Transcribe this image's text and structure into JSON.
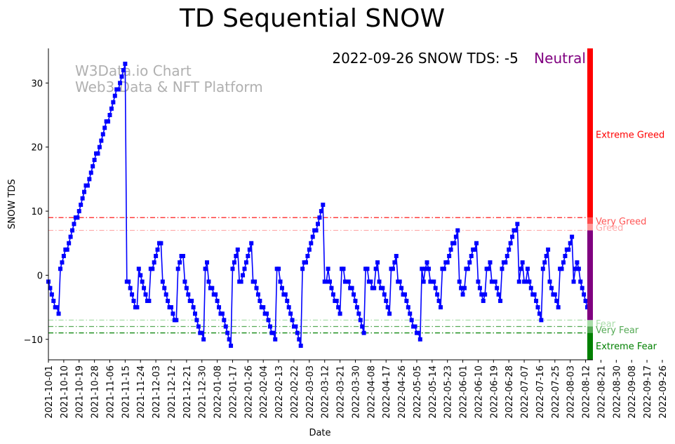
{
  "chart_data": {
    "type": "line",
    "title": "TD Sequential SNOW",
    "xlabel": "Date",
    "ylabel": "SNOW TDS",
    "ylim": [
      -13.2,
      35.4
    ],
    "yticks": [
      30,
      20,
      10,
      0,
      -10
    ],
    "ytick_labels": [
      "30",
      "20",
      "10",
      "0",
      "−10"
    ],
    "x_tick_labels": [
      "2021-10-01",
      "2021-10-10",
      "2021-10-19",
      "2021-10-28",
      "2021-11-06",
      "2021-11-15",
      "2021-11-24",
      "2021-12-03",
      "2021-12-12",
      "2021-12-21",
      "2021-12-30",
      "2022-01-08",
      "2022-01-17",
      "2022-01-26",
      "2022-02-04",
      "2022-02-13",
      "2022-02-22",
      "2022-03-03",
      "2022-03-12",
      "2022-03-21",
      "2022-03-30",
      "2022-04-08",
      "2022-04-17",
      "2022-04-26",
      "2022-05-05",
      "2022-05-14",
      "2022-05-23",
      "2022-06-01",
      "2022-06-10",
      "2022-06-19",
      "2022-06-28",
      "2022-07-07",
      "2022-07-16",
      "2022-07-25",
      "2022-08-03",
      "2022-08-12",
      "2022-08-21",
      "2022-08-30",
      "2022-09-08",
      "2022-09-17",
      "2022-09-26"
    ],
    "start_date": "2021-10-01",
    "series": [
      {
        "name": "SNOW TDS",
        "color": "#0000ff",
        "values": [
          -1,
          -2,
          -3,
          -4,
          -5,
          -5,
          -6,
          1,
          2,
          3,
          4,
          4,
          5,
          6,
          7,
          8,
          9,
          9,
          10,
          11,
          12,
          13,
          14,
          14,
          15,
          16,
          17,
          18,
          19,
          19,
          20,
          21,
          22,
          23,
          24,
          24,
          25,
          26,
          27,
          28,
          29,
          29,
          30,
          31,
          32,
          33,
          -1,
          -1,
          -2,
          -3,
          -4,
          -5,
          -5,
          1,
          0,
          -1,
          -2,
          -3,
          -4,
          -4,
          1,
          1,
          2,
          3,
          4,
          5,
          5,
          -1,
          -2,
          -3,
          -4,
          -5,
          -5,
          -6,
          -7,
          -7,
          1,
          2,
          3,
          3,
          -1,
          -2,
          -3,
          -4,
          -4,
          -5,
          -6,
          -7,
          -8,
          -9,
          -9,
          -10,
          1,
          2,
          -1,
          -2,
          -2,
          -3,
          -3,
          -4,
          -5,
          -6,
          -6,
          -7,
          -8,
          -9,
          -10,
          -11,
          1,
          2,
          3,
          4,
          -1,
          -1,
          0,
          1,
          2,
          3,
          4,
          5,
          -1,
          -1,
          -2,
          -3,
          -4,
          -5,
          -5,
          -6,
          -6,
          -7,
          -8,
          -9,
          -9,
          -10,
          1,
          1,
          -1,
          -2,
          -3,
          -3,
          -4,
          -5,
          -6,
          -7,
          -8,
          -8,
          -9,
          -10,
          -11,
          1,
          2,
          2,
          3,
          4,
          5,
          6,
          7,
          7,
          8,
          9,
          10,
          11,
          -1,
          -1,
          1,
          -1,
          -2,
          -3,
          -4,
          -4,
          -5,
          -6,
          1,
          1,
          -1,
          -1,
          -1,
          -2,
          -2,
          -3,
          -4,
          -5,
          -6,
          -7,
          -8,
          -9,
          1,
          1,
          -1,
          -1,
          -2,
          -2,
          1,
          2,
          -1,
          -2,
          -2,
          -3,
          -4,
          -5,
          -6,
          1,
          1,
          2,
          3,
          -1,
          -1,
          -2,
          -3,
          -3,
          -4,
          -5,
          -6,
          -7,
          -8,
          -8,
          -9,
          -9,
          -10,
          1,
          -1,
          1,
          2,
          1,
          -1,
          -1,
          -1,
          -2,
          -3,
          -4,
          -5,
          1,
          1,
          2,
          2,
          3,
          4,
          5,
          5,
          6,
          7,
          -1,
          -2,
          -3,
          -2,
          1,
          1,
          2,
          3,
          4,
          4,
          5,
          -1,
          -2,
          -3,
          -4,
          -3,
          1,
          1,
          2,
          -1,
          -1,
          -1,
          -2,
          -3,
          -4,
          1,
          2,
          2,
          3,
          4,
          5,
          6,
          7,
          7,
          8,
          -1,
          1,
          2,
          -1,
          -1,
          1,
          -1,
          -2,
          -3,
          -3,
          -4,
          -5,
          -6,
          -7,
          1,
          2,
          3,
          4,
          -1,
          -2,
          -3,
          -3,
          -4,
          -5,
          1,
          1,
          2,
          3,
          4,
          4,
          5,
          6,
          -1,
          1,
          2,
          1,
          -1,
          -2,
          -3,
          -4,
          -5
        ]
      }
    ],
    "thresholds": [
      {
        "label": "Very Greed",
        "value": 9,
        "color": "#ff0000"
      },
      {
        "label": "Greed",
        "value": 7,
        "color": "#ffaaaa"
      },
      {
        "label": "Fear",
        "value": -7,
        "color": "#aaddaa"
      },
      {
        "label": "Very Fear",
        "value": -8,
        "color": "#55aa55"
      },
      {
        "label": "Extreme Fear",
        "value": -9,
        "color": "#008000"
      }
    ],
    "zones": [
      {
        "label": "Extreme Greed",
        "from": 9,
        "to": 35.4,
        "color": "#ff0000",
        "label_value": 22,
        "label_color": "#ff0000"
      },
      {
        "label": "Very Greed",
        "from": 8,
        "to": 9,
        "color": "#ff4c4c",
        "label_value": 8.5,
        "label_color": "#ff5555"
      },
      {
        "label": "Greed",
        "from": 7,
        "to": 8,
        "color": "#ff9999",
        "label_value": 7.5,
        "label_color": "#ffaaaa"
      },
      {
        "label": "Neutral",
        "from": -7,
        "to": 7,
        "color": "#800080",
        "label_value": null,
        "label_color": "#800080"
      },
      {
        "label": "Fear",
        "from": -8,
        "to": -7,
        "color": "#aaddaa",
        "label_value": -7.5,
        "label_color": "#aaddaa"
      },
      {
        "label": "Very Fear",
        "from": -9,
        "to": -8,
        "color": "#55aa55",
        "label_value": -8.5,
        "label_color": "#55aa55"
      },
      {
        "label": "Extreme Fear",
        "from": -13.2,
        "to": -9,
        "color": "#008000",
        "label_value": -11,
        "label_color": "#008000"
      }
    ]
  },
  "status": {
    "text": "2022-09-26 SNOW TDS: -5",
    "sentiment": "Neutral",
    "sentiment_color": "#800080"
  },
  "watermark": {
    "line1": "W3Data.io Chart",
    "line2": "Web3 Data & NFT Platform"
  }
}
